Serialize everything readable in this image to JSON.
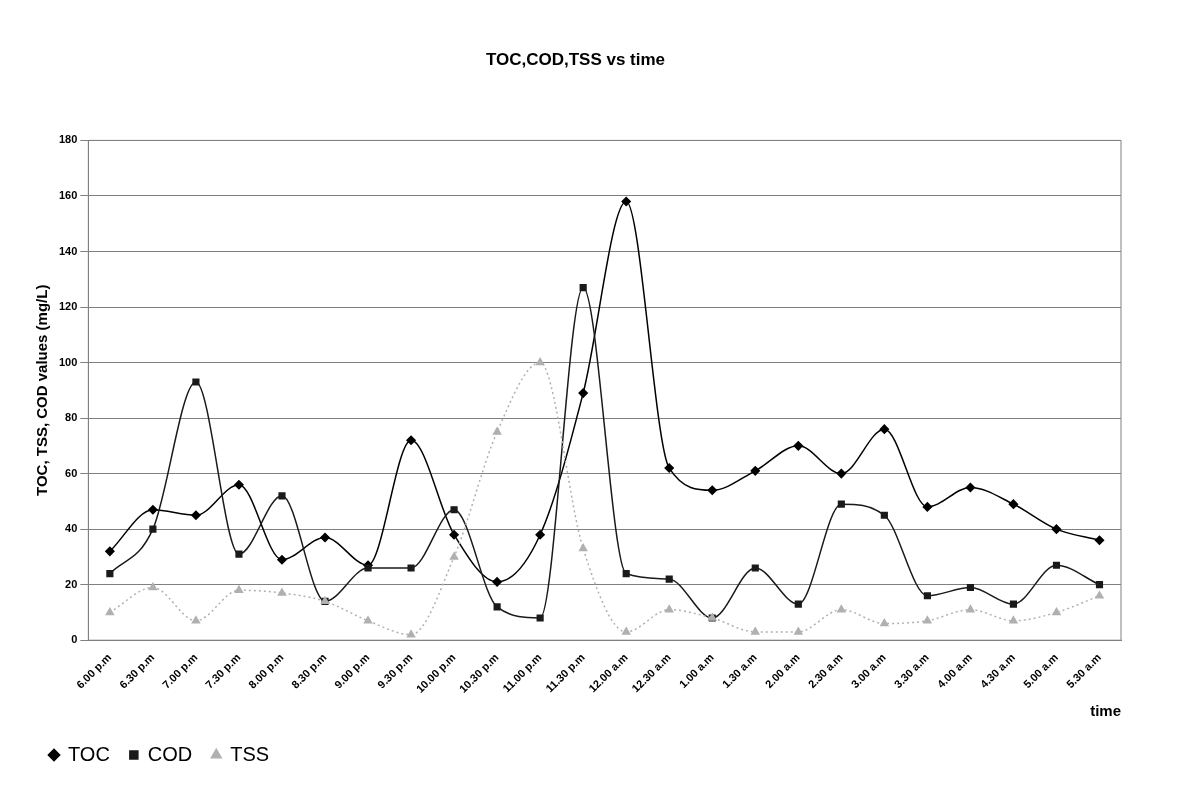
{
  "chart_data": {
    "type": "line",
    "title": "TOC,COD,TSS vs time",
    "xlabel": "time",
    "ylabel": "TOC, TSS, COD values (mg/L)",
    "categories": [
      "6.00 p.m",
      "6.30 p.m",
      "7.00 p.m",
      "7.30 p.m",
      "8.00 p.m",
      "8.30 p.m",
      "9.00 p.m",
      "9.30 p.m",
      "10.00 p.m",
      "10.30 p.m",
      "11.00 p.m",
      "11.30 p.m",
      "12.00 a.m",
      "12.30 a.m",
      "1.00 a.m",
      "1.30 a.m",
      "2.00 a.m",
      "2.30 a.m",
      "3.00 a.m",
      "3.30 a.m",
      "4.00 a.m",
      "4.30 a.m",
      "5.00 a.m",
      "5.30 a.m"
    ],
    "series": [
      {
        "name": "TOC",
        "color": "#000000",
        "marker": "diamond",
        "line_style": "solid",
        "values": [
          32,
          47,
          45,
          56,
          29,
          37,
          27,
          72,
          38,
          21,
          38,
          89,
          158,
          62,
          54,
          61,
          70,
          60,
          76,
          48,
          55,
          49,
          40,
          36
        ]
      },
      {
        "name": "COD",
        "color": "#1a1a1a",
        "marker": "square",
        "line_style": "solid",
        "values": [
          24,
          40,
          93,
          31,
          52,
          14,
          26,
          26,
          47,
          12,
          8,
          127,
          24,
          22,
          8,
          26,
          13,
          49,
          45,
          16,
          19,
          13,
          27,
          20
        ]
      },
      {
        "name": "TSS",
        "color": "#b0b0b0",
        "marker": "triangle",
        "line_style": "dotted",
        "values": [
          10,
          19,
          7,
          18,
          17,
          14,
          7,
          2,
          30,
          75,
          100,
          33,
          3,
          11,
          8,
          3,
          3,
          11,
          6,
          7,
          11,
          7,
          10,
          16
        ]
      }
    ],
    "ylim": [
      0,
      180
    ],
    "yticks": [
      0,
      20,
      40,
      60,
      80,
      100,
      120,
      140,
      160,
      180
    ],
    "grid": "y",
    "legend": "bottom left"
  }
}
